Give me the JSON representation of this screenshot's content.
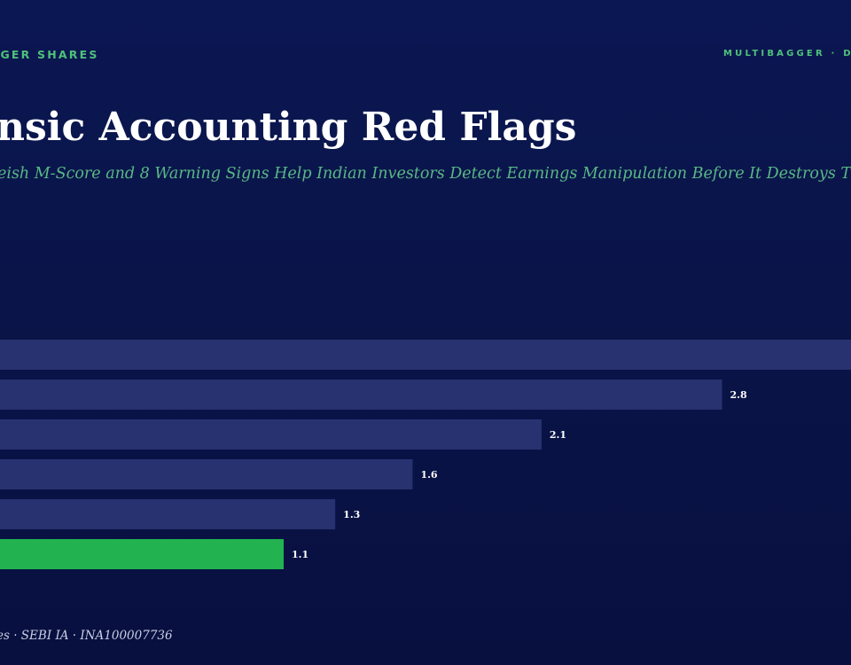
{
  "header": {
    "brand_left": "GGER SHARES",
    "brand_right": "MULTIBAGGER · D",
    "title": "nsic Accounting Red Flags",
    "subtitle": "eish M-Score and 8 Warning Signs Help Indian Investors Detect Earnings Manipulation Before It Destroys T"
  },
  "chart_data": {
    "type": "bar",
    "orientation": "horizontal",
    "values": [
      3.3,
      2.8,
      2.1,
      1.6,
      1.3,
      1.1
    ],
    "value_labels": [
      "",
      "2.8",
      "2.1",
      "1.6",
      "1.3",
      "1.1"
    ],
    "colors": [
      "#283270",
      "#283270",
      "#283270",
      "#283270",
      "#283270",
      "#22b350"
    ],
    "xlim": [
      0,
      3.3
    ],
    "grid": false,
    "legend": "none"
  },
  "footer": {
    "text": "es · SEBI IA · INA100007736"
  }
}
